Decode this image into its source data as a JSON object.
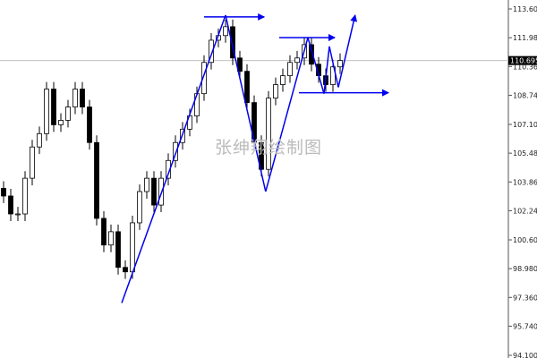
{
  "watermark": "张绅翔绘制图",
  "chart_data": {
    "type": "candlestick",
    "title": "",
    "xlabel": "",
    "ylabel": "",
    "ylim": [
      94.1,
      113.6
    ],
    "y_ticks": [
      "113.600",
      "111.980",
      "110.360",
      "108.740",
      "107.100",
      "105.480",
      "103.860",
      "102.240",
      "100.600",
      "98.980",
      "97.360",
      "95.740",
      "94.100"
    ],
    "current_price": "110.695",
    "grid": false,
    "colors": {
      "bull_body": "#ffffff",
      "bear_body": "#000000",
      "outline": "#000000",
      "annotation": "#0000ee",
      "price_line": "#c0c0c0"
    },
    "first_open": 103.5,
    "closes": [
      103.07,
      102.06,
      102.06,
      104.07,
      105.83,
      106.58,
      109.09,
      107.08,
      107.33,
      108.08,
      109.09,
      108.08,
      106.08,
      101.81,
      100.31,
      101.06,
      99.05,
      98.8,
      101.56,
      103.32,
      104.07,
      102.56,
      104.07,
      105.07,
      106.08,
      106.83,
      107.58,
      108.83,
      110.59,
      111.84,
      112.1,
      112.6,
      110.84,
      110.09,
      108.33,
      106.08,
      104.57,
      108.58,
      109.34,
      109.84,
      110.59,
      110.84,
      111.59,
      110.49,
      109.84,
      109.34,
      110.34,
      110.7
    ],
    "annotations": {
      "trend_lines": [
        {
          "from": [
            16.5,
            97.05
          ],
          "to": [
            31,
            113.25
          ]
        },
        {
          "from": [
            31,
            113.25
          ],
          "to": [
            36.6,
            103.32
          ]
        },
        {
          "from": [
            36.6,
            103.32
          ],
          "to": [
            42.5,
            111.99
          ]
        },
        {
          "from": [
            42.5,
            111.99
          ],
          "to": [
            44.75,
            108.83
          ]
        },
        {
          "from": [
            44.75,
            108.83
          ],
          "to": [
            45.5,
            111.49
          ]
        },
        {
          "from": [
            45.5,
            111.49
          ],
          "to": [
            46.75,
            109.19
          ]
        }
      ],
      "arrows": [
        {
          "from": [
            46.75,
            109.19
          ],
          "to": [
            49.1,
            113.25
          ]
        },
        {
          "from": [
            28,
            113.15
          ],
          "to": [
            36.4,
            113.15
          ]
        },
        {
          "from": [
            38.5,
            111.99
          ],
          "to": [
            46.25,
            111.99
          ]
        },
        {
          "from": [
            41.25,
            108.88
          ],
          "to": [
            53.75,
            108.88
          ]
        }
      ]
    }
  }
}
